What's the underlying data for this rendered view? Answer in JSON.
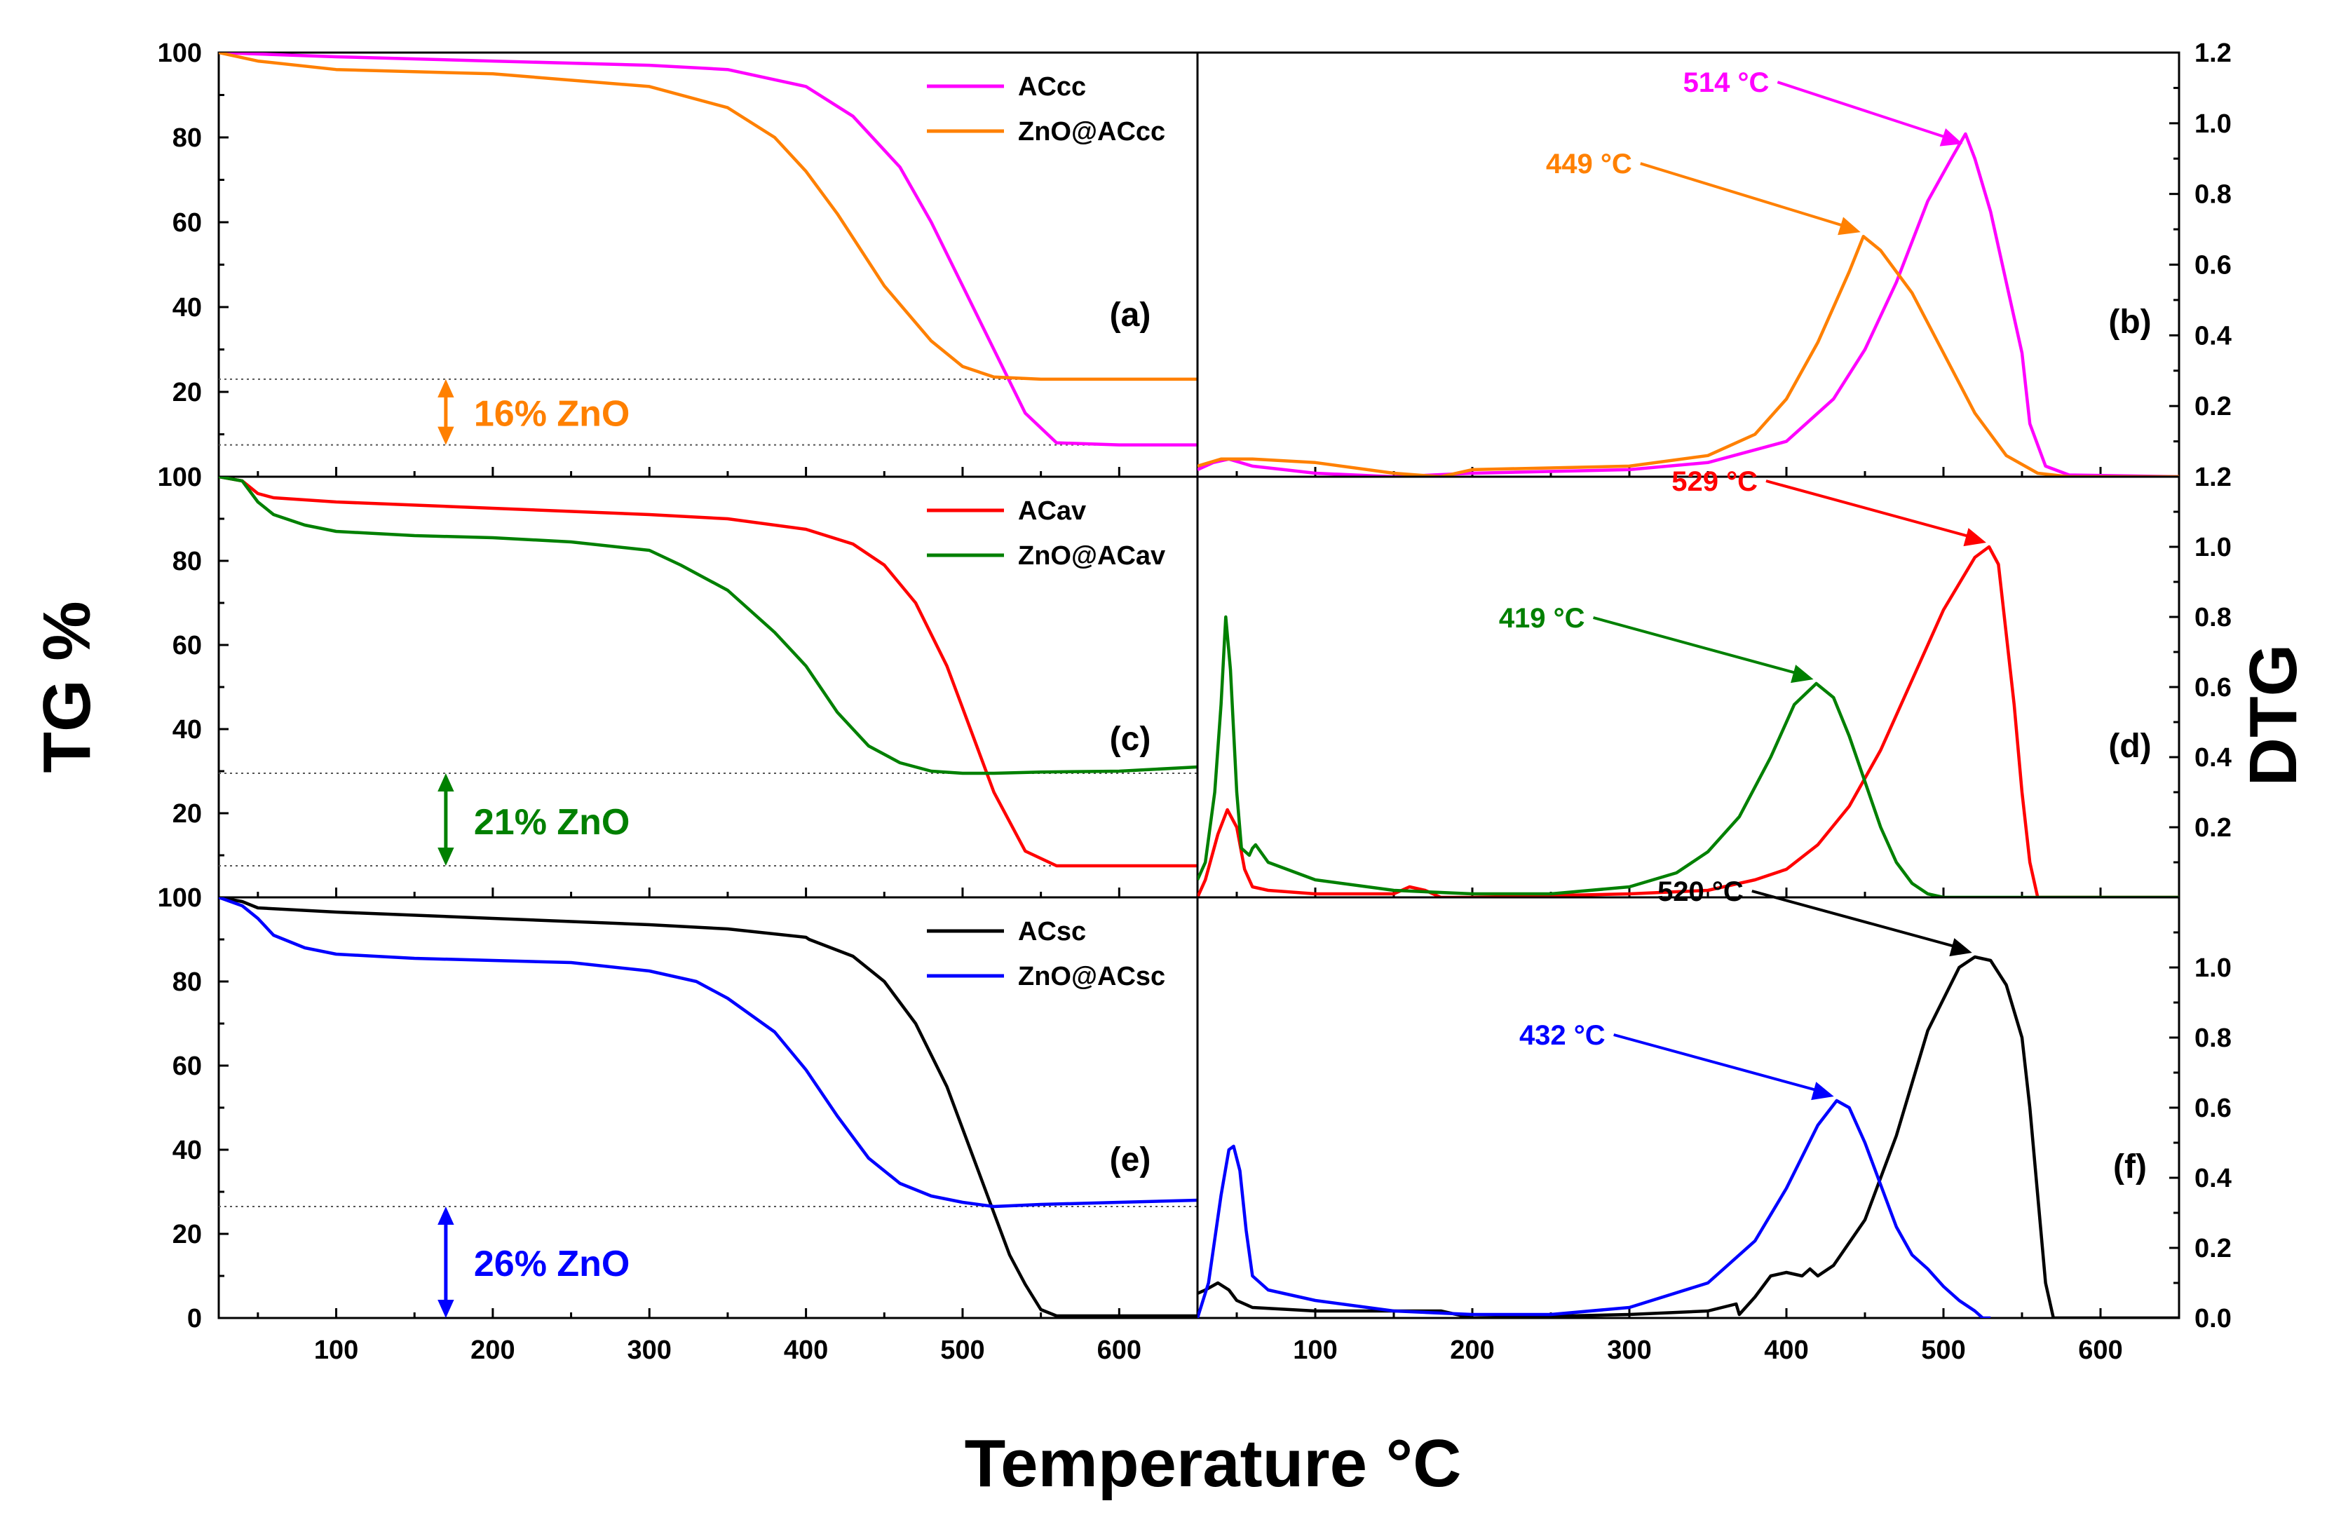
{
  "figure": {
    "xlabel": "Temperature °C",
    "ylabel_left": "TG %",
    "ylabel_right": "DTG"
  },
  "chart_data": [
    {
      "id": "a",
      "type": "line",
      "panel_label": "(a)",
      "xlabel": "Temperature °C",
      "ylabel": "TG %",
      "xlim": [
        25,
        650
      ],
      "ylim": [
        0,
        100
      ],
      "xticks": [],
      "yticks": [
        20,
        40,
        60,
        80,
        100
      ],
      "ytick_labels": [
        "20",
        "40",
        "60",
        "80",
        "100"
      ],
      "ref_lines": [
        23,
        7.5
      ],
      "annotation": {
        "text": "16% ZnO",
        "color": "#ff8000",
        "x": 170,
        "from": 23,
        "to": 7.5,
        "label_y": 15
      },
      "series": [
        {
          "name": "ACcc",
          "color": "#ff00ff",
          "x": [
            25,
            100,
            200,
            300,
            350,
            400,
            430,
            460,
            480,
            500,
            520,
            540,
            560,
            600,
            650
          ],
          "y": [
            100,
            99,
            98,
            97,
            96,
            92,
            85,
            73,
            60,
            45,
            30,
            15,
            8,
            7.5,
            7.5
          ]
        },
        {
          "name": "ZnO@ACcc",
          "color": "#ff8000",
          "x": [
            25,
            50,
            100,
            200,
            300,
            350,
            380,
            400,
            420,
            450,
            480,
            500,
            520,
            550,
            600,
            650
          ],
          "y": [
            100,
            98,
            96,
            95,
            92,
            87,
            80,
            72,
            62,
            45,
            32,
            26,
            23.5,
            23,
            23,
            23
          ]
        }
      ]
    },
    {
      "id": "b",
      "type": "line",
      "panel_label": "(b)",
      "xlabel": "Temperature °C",
      "ylabel": "DTG",
      "xlim": [
        25,
        650
      ],
      "ylim": [
        0,
        1.2
      ],
      "xticks": [],
      "yticks": [
        0.2,
        0.4,
        0.6,
        0.8,
        1.0,
        1.2
      ],
      "ytick_labels": [
        "0.2",
        "0.4",
        "0.6",
        "0.8",
        "1.0",
        "1.2"
      ],
      "series": [
        {
          "name": "ACcc",
          "color": "#ff00ff",
          "x": [
            25,
            35,
            45,
            60,
            80,
            100,
            150,
            200,
            300,
            350,
            400,
            430,
            450,
            470,
            490,
            505,
            514,
            520,
            530,
            540,
            550,
            555,
            565,
            580,
            650
          ],
          "y": [
            0.02,
            0.04,
            0.05,
            0.03,
            0.02,
            0.01,
            0.0,
            0.01,
            0.02,
            0.04,
            0.1,
            0.22,
            0.36,
            0.55,
            0.78,
            0.9,
            0.97,
            0.9,
            0.75,
            0.55,
            0.35,
            0.15,
            0.03,
            0.005,
            0.0
          ]
        },
        {
          "name": "ZnO@ACcc",
          "color": "#ff8000",
          "x": [
            25,
            40,
            60,
            100,
            150,
            180,
            200,
            300,
            350,
            380,
            400,
            420,
            440,
            449,
            460,
            480,
            500,
            520,
            540,
            560,
            580,
            650
          ],
          "y": [
            0.03,
            0.05,
            0.05,
            0.04,
            0.01,
            0.0,
            0.02,
            0.03,
            0.06,
            0.12,
            0.22,
            0.38,
            0.58,
            0.68,
            0.64,
            0.52,
            0.35,
            0.18,
            0.06,
            0.01,
            0.0,
            0.0
          ]
        }
      ],
      "annotations": [
        {
          "text": "514 °C",
          "color": "#ff00ff",
          "x": 514,
          "y": 0.93
        },
        {
          "text": "449 °C",
          "color": "#ff8000",
          "x": 449,
          "y": 0.68
        }
      ]
    },
    {
      "id": "c",
      "type": "line",
      "panel_label": "(c)",
      "xlabel": "Temperature °C",
      "ylabel": "TG %",
      "xlim": [
        25,
        650
      ],
      "ylim": [
        0,
        100
      ],
      "xticks": [],
      "yticks": [
        20,
        40,
        60,
        80,
        100
      ],
      "ytick_labels": [
        "20",
        "40",
        "60",
        "80",
        "100"
      ],
      "ref_lines": [
        29.5,
        7.5
      ],
      "annotation": {
        "text": "21% ZnO",
        "color": "#008000",
        "x": 170,
        "from": 29.5,
        "to": 7.5,
        "label_y": 18
      },
      "series": [
        {
          "name": "ACav",
          "color": "#ff0000",
          "x": [
            25,
            40,
            50,
            60,
            100,
            200,
            300,
            350,
            400,
            430,
            450,
            470,
            490,
            500,
            520,
            540,
            560,
            600,
            650
          ],
          "y": [
            100,
            99,
            96,
            95,
            94,
            92.5,
            91,
            90,
            87.5,
            84,
            79,
            70,
            55,
            45,
            25,
            11,
            7.5,
            7.5,
            7.5
          ]
        },
        {
          "name": "ZnO@ACav",
          "color": "#008000",
          "x": [
            25,
            40,
            50,
            60,
            80,
            100,
            150,
            200,
            250,
            300,
            320,
            350,
            380,
            400,
            420,
            440,
            460,
            480,
            500,
            520,
            550,
            600,
            650
          ],
          "y": [
            100,
            99,
            94,
            91,
            88.5,
            87,
            86,
            85.5,
            84.5,
            82.5,
            79,
            73,
            63,
            55,
            44,
            36,
            32,
            30,
            29.5,
            29.5,
            29.8,
            30,
            31
          ]
        }
      ]
    },
    {
      "id": "d",
      "type": "line",
      "panel_label": "(d)",
      "xlabel": "Temperature °C",
      "ylabel": "DTG",
      "xlim": [
        25,
        650
      ],
      "ylim": [
        0,
        1.2
      ],
      "xticks": [],
      "yticks": [
        0.2,
        0.4,
        0.6,
        0.8,
        1.0,
        1.2
      ],
      "ytick_labels": [
        "0.2",
        "0.4",
        "0.6",
        "0.8",
        "1.0",
        "1.2"
      ],
      "series": [
        {
          "name": "ACav",
          "color": "#ff0000",
          "x": [
            25,
            30,
            38,
            44,
            50,
            55,
            60,
            70,
            100,
            150,
            160,
            170,
            180,
            200,
            300,
            350,
            380,
            400,
            420,
            440,
            460,
            480,
            500,
            520,
            529,
            535,
            540,
            545,
            550,
            555,
            560,
            650
          ],
          "y": [
            0.0,
            0.05,
            0.18,
            0.25,
            0.2,
            0.08,
            0.03,
            0.02,
            0.01,
            0.01,
            0.03,
            0.02,
            0.0,
            0.0,
            0.01,
            0.02,
            0.05,
            0.08,
            0.15,
            0.26,
            0.42,
            0.62,
            0.82,
            0.97,
            1.0,
            0.95,
            0.75,
            0.55,
            0.3,
            0.1,
            0.0,
            0.0
          ]
        },
        {
          "name": "ZnO@ACav",
          "color": "#008000",
          "x": [
            25,
            30,
            36,
            40,
            43,
            46,
            50,
            53,
            58,
            60,
            62,
            70,
            100,
            150,
            200,
            250,
            300,
            330,
            350,
            370,
            390,
            405,
            419,
            430,
            440,
            450,
            460,
            470,
            480,
            490,
            500,
            650
          ],
          "y": [
            0.05,
            0.1,
            0.3,
            0.55,
            0.8,
            0.65,
            0.3,
            0.14,
            0.12,
            0.14,
            0.15,
            0.1,
            0.05,
            0.02,
            0.01,
            0.01,
            0.03,
            0.07,
            0.13,
            0.23,
            0.4,
            0.55,
            0.61,
            0.57,
            0.46,
            0.33,
            0.2,
            0.1,
            0.04,
            0.01,
            0.0,
            0.0
          ]
        }
      ],
      "annotations": [
        {
          "text": "529 °C",
          "color": "#ff0000",
          "x": 529,
          "y": 1.0
        },
        {
          "text": "419 °C",
          "color": "#008000",
          "x": 419,
          "y": 0.61
        }
      ]
    },
    {
      "id": "e",
      "type": "line",
      "panel_label": "(e)",
      "xlabel": "Temperature °C",
      "ylabel": "TG %",
      "xlim": [
        25,
        650
      ],
      "ylim": [
        0,
        100
      ],
      "xticks": [
        100,
        200,
        300,
        400,
        500,
        600
      ],
      "xtick_labels": [
        "100",
        "200",
        "300",
        "400",
        "500",
        "600"
      ],
      "yticks": [
        0,
        20,
        40,
        60,
        80,
        100
      ],
      "ytick_labels": [
        "0",
        "20",
        "40",
        "60",
        "80",
        "100"
      ],
      "ref_lines": [
        26.5
      ],
      "annotation": {
        "text": "26% ZnO",
        "color": "#0000ff",
        "x": 170,
        "from": 26.5,
        "to": 0,
        "label_y": 13
      },
      "series": [
        {
          "name": "ACsc",
          "color": "#000000",
          "x": [
            25,
            40,
            50,
            100,
            200,
            300,
            350,
            400,
            402,
            430,
            450,
            470,
            490,
            510,
            520,
            530,
            540,
            550,
            560,
            600,
            650
          ],
          "y": [
            100,
            99,
            97.5,
            96.5,
            95,
            93.5,
            92.5,
            90.5,
            90,
            86,
            80,
            70,
            55,
            35,
            25,
            15,
            8,
            2,
            0.5,
            0.5,
            0.5
          ]
        },
        {
          "name": "ZnO@ACsc",
          "color": "#0000ff",
          "x": [
            25,
            40,
            50,
            60,
            80,
            100,
            150,
            200,
            250,
            300,
            330,
            350,
            380,
            400,
            420,
            440,
            460,
            480,
            500,
            520,
            550,
            600,
            650
          ],
          "y": [
            100,
            98,
            95,
            91,
            88,
            86.5,
            85.5,
            85,
            84.5,
            82.5,
            80,
            76,
            68,
            59,
            48,
            38,
            32,
            29,
            27.5,
            26.5,
            27,
            27.5,
            28
          ]
        }
      ]
    },
    {
      "id": "f",
      "type": "line",
      "panel_label": "(f)",
      "xlabel": "Temperature °C",
      "ylabel": "DTG",
      "xlim": [
        25,
        650
      ],
      "ylim": [
        0,
        1.2
      ],
      "xticks": [
        100,
        200,
        300,
        400,
        500,
        600
      ],
      "xtick_labels": [
        "100",
        "200",
        "300",
        "400",
        "500",
        "600"
      ],
      "yticks": [
        0.0,
        0.2,
        0.4,
        0.6,
        0.8,
        1.0
      ],
      "ytick_labels": [
        "0.0",
        "0.2",
        "0.4",
        "0.6",
        "0.8",
        "1.0"
      ],
      "series": [
        {
          "name": "ACsc",
          "color": "#000000",
          "x": [
            25,
            30,
            38,
            45,
            50,
            60,
            100,
            150,
            180,
            190,
            200,
            300,
            350,
            368,
            370,
            380,
            390,
            400,
            410,
            415,
            420,
            430,
            450,
            470,
            490,
            510,
            520,
            530,
            540,
            550,
            555,
            560,
            565,
            570,
            650
          ],
          "y": [
            0.07,
            0.08,
            0.1,
            0.08,
            0.05,
            0.03,
            0.02,
            0.02,
            0.02,
            0.01,
            0.0,
            0.01,
            0.02,
            0.04,
            0.01,
            0.06,
            0.12,
            0.13,
            0.12,
            0.14,
            0.12,
            0.15,
            0.28,
            0.52,
            0.82,
            1.0,
            1.03,
            1.02,
            0.95,
            0.8,
            0.6,
            0.35,
            0.1,
            0.0,
            0.0
          ]
        },
        {
          "name": "ZnO@ACsc",
          "color": "#0000ff",
          "x": [
            25,
            32,
            40,
            45,
            48,
            52,
            56,
            60,
            70,
            100,
            150,
            200,
            250,
            300,
            350,
            380,
            400,
            420,
            432,
            440,
            450,
            460,
            470,
            480,
            490,
            500,
            510,
            520,
            525,
            530
          ],
          "y": [
            0.0,
            0.1,
            0.35,
            0.48,
            0.49,
            0.42,
            0.25,
            0.12,
            0.08,
            0.05,
            0.02,
            0.01,
            0.01,
            0.03,
            0.1,
            0.22,
            0.37,
            0.55,
            0.62,
            0.6,
            0.5,
            0.38,
            0.26,
            0.18,
            0.14,
            0.09,
            0.05,
            0.02,
            0.0,
            0.0
          ]
        }
      ],
      "annotations": [
        {
          "text": "520 °C",
          "color": "#000000",
          "x": 520,
          "y": 1.03
        },
        {
          "text": "432 °C",
          "color": "#0000ff",
          "x": 432,
          "y": 0.62
        }
      ]
    }
  ]
}
